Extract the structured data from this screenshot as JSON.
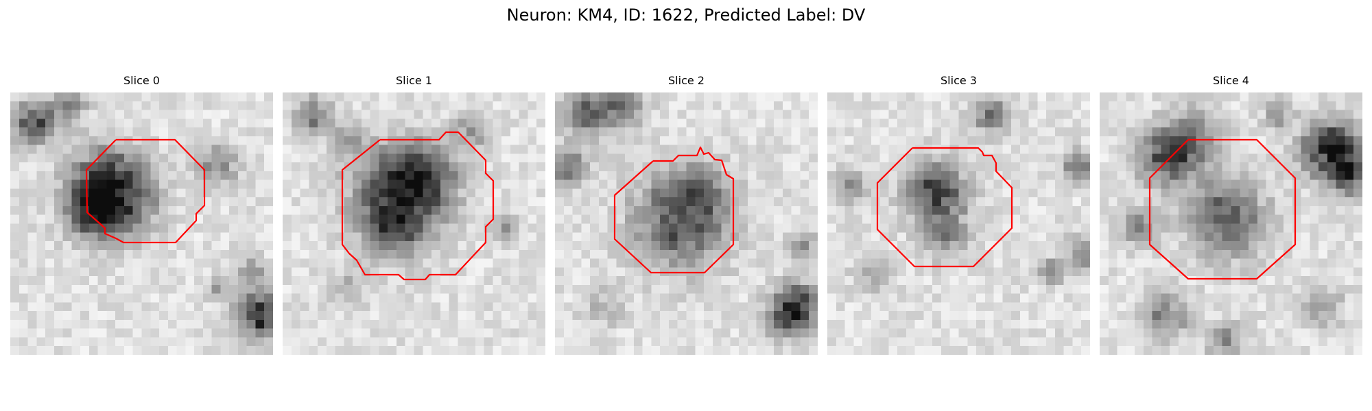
{
  "figure": {
    "title": "Neuron: KM4, ID: 1622, Predicted Label: DV"
  },
  "colors": {
    "contour": "#ff0000",
    "background": "#ffffff",
    "colormap": "gray"
  },
  "panels": [
    {
      "title": "Slice 0"
    },
    {
      "title": "Slice 1"
    },
    {
      "title": "Slice 2"
    },
    {
      "title": "Slice 3"
    },
    {
      "title": "Slice 4"
    }
  ]
}
